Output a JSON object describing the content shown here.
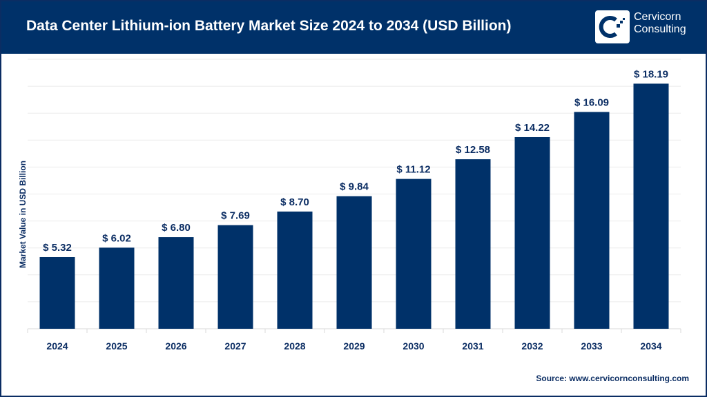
{
  "header": {
    "title": "Data Center Lithium-ion Battery Market Size 2024 to 2034 (USD Billion)",
    "logo_text_line1": "Cervicorn",
    "logo_text_line2": "Consulting"
  },
  "source": "Source: www.cervicornconsulting.com",
  "colors": {
    "bar": "#003169",
    "header": "#003169",
    "text": "#0b2d63",
    "grid": "#ebebeb"
  },
  "chart_data": {
    "type": "bar",
    "title": "Data Center Lithium-ion Battery Market Size 2024 to 2034 (USD Billion)",
    "xlabel": "",
    "ylabel": "Market Value in USD Billion",
    "categories": [
      "2024",
      "2025",
      "2026",
      "2027",
      "2028",
      "2029",
      "2030",
      "2031",
      "2032",
      "2033",
      "2034"
    ],
    "values": [
      5.32,
      6.02,
      6.8,
      7.69,
      8.7,
      9.84,
      11.12,
      12.58,
      14.22,
      16.09,
      18.19
    ],
    "data_labels": [
      "$ 5.32",
      "$ 6.02",
      "$ 6.80",
      "$ 7.69",
      "$ 8.70",
      "$ 9.84",
      "$ 11.12",
      "$ 12.58",
      "$ 14.22",
      "$ 16.09",
      "$ 18.19"
    ],
    "ylim": [
      0,
      20
    ],
    "grid": true,
    "y_tick_labels_shown": false
  }
}
